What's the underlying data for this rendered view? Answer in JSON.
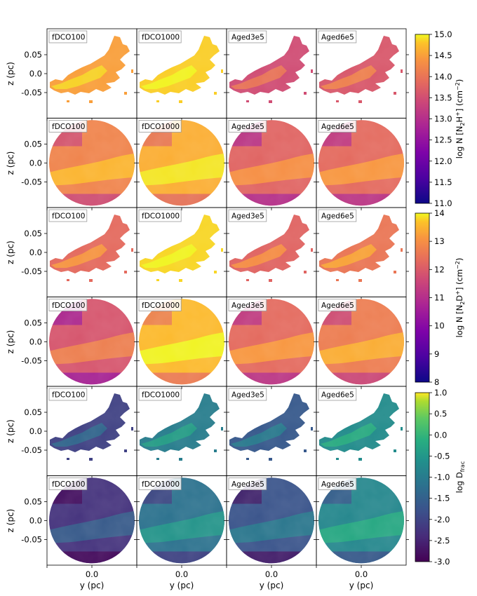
{
  "chart_data": {
    "type": "heatmap",
    "title": "",
    "panel_labels": [
      "fDCO100",
      "fDCO1000",
      "Aged3e5",
      "Aged6e5"
    ],
    "xlabel": "y (pc)",
    "ylabel": "z (pc)",
    "xlim": [
      -0.1,
      0.1
    ],
    "ylim": [
      -0.1,
      0.1
    ],
    "x_ticks": [
      "0.0"
    ],
    "y_ticks": [
      "0.05",
      "0.0",
      "-0.05"
    ],
    "rows": [
      {
        "quantity": "N2H+",
        "shape": "cloud",
        "cmap": "plasma",
        "brightness": [
          0.78,
          0.9,
          0.52,
          0.56
        ]
      },
      {
        "quantity": "N2H+",
        "shape": "disk",
        "cmap": "plasma",
        "brightness": [
          0.7,
          0.82,
          0.6,
          0.62
        ]
      },
      {
        "quantity": "N2D+",
        "shape": "cloud",
        "cmap": "plasma",
        "brightness": [
          0.62,
          0.92,
          0.6,
          0.66
        ]
      },
      {
        "quantity": "N2D+",
        "shape": "disk",
        "cmap": "plasma",
        "brightness": [
          0.55,
          0.85,
          0.62,
          0.68
        ]
      },
      {
        "quantity": "Dfrac",
        "shape": "cloud",
        "cmap": "viridis",
        "brightness": [
          0.2,
          0.42,
          0.28,
          0.48
        ]
      },
      {
        "quantity": "Dfrac",
        "shape": "disk",
        "cmap": "viridis",
        "brightness": [
          0.15,
          0.38,
          0.26,
          0.46
        ]
      }
    ],
    "colorbars": [
      {
        "label_main": "log N [N",
        "label_sub1": "2",
        "label_mid": "H",
        "label_sup": "+",
        "label_tail": "] (cm",
        "label_sup2": "−2",
        "label_end": ")",
        "cmap": "plasma",
        "range": [
          11.0,
          15.0
        ],
        "ticks": [
          "15.0",
          "14.5",
          "14.0",
          "13.5",
          "13.0",
          "12.5",
          "12.0",
          "11.5",
          "11.0"
        ]
      },
      {
        "label_main": "log N [N",
        "label_sub1": "2",
        "label_mid": "D",
        "label_sup": "+",
        "label_tail": "] (cm",
        "label_sup2": "−2",
        "label_end": ")",
        "cmap": "plasma",
        "range": [
          8,
          14
        ],
        "ticks": [
          "14",
          "13",
          "12",
          "11",
          "10",
          "9",
          "8"
        ]
      },
      {
        "label_main": "log D",
        "label_sub1": "frac",
        "label_mid": "",
        "label_sup": "",
        "label_tail": "",
        "label_sup2": "",
        "label_end": "",
        "cmap": "viridis",
        "range": [
          -3.0,
          1.0
        ],
        "ticks": [
          "1.0",
          "0.5",
          "0.0",
          "-0.5",
          "-1.0",
          "-1.5",
          "-2.0",
          "-2.5",
          "-3.0"
        ]
      }
    ]
  }
}
